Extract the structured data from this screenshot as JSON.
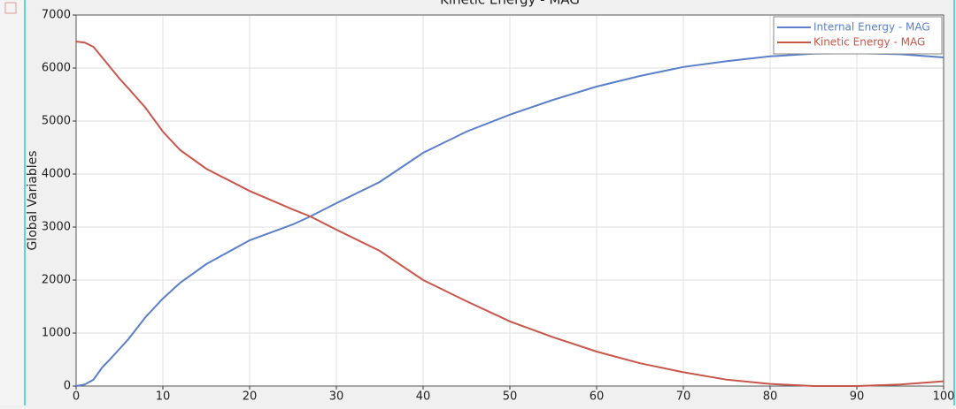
{
  "chart_data": {
    "type": "line",
    "title": "Kinetic Energy - MAG",
    "y_label": "Global Variables",
    "x": [
      0,
      1,
      2,
      3,
      4,
      5,
      6,
      8,
      10,
      12,
      15,
      20,
      25,
      27,
      30,
      35,
      40,
      45,
      50,
      55,
      60,
      65,
      70,
      75,
      80,
      85,
      90,
      95,
      100
    ],
    "series": [
      {
        "name": "Internal Energy - MAG",
        "color": "#5b7fc9",
        "values": [
          0,
          30,
          120,
          350,
          520,
          700,
          880,
          1300,
          1650,
          1950,
          2300,
          2750,
          3050,
          3200,
          3450,
          3850,
          4400,
          4800,
          5120,
          5400,
          5650,
          5850,
          6020,
          6130,
          6220,
          6270,
          6280,
          6260,
          6200
        ]
      },
      {
        "name": "Kinetic Energy - MAG",
        "color": "#c8564a",
        "values": [
          6500,
          6480,
          6400,
          6200,
          6000,
          5800,
          5620,
          5250,
          4800,
          4450,
          4100,
          3680,
          3330,
          3200,
          2950,
          2550,
          2000,
          1600,
          1220,
          920,
          650,
          430,
          260,
          120,
          40,
          0,
          0,
          30,
          90
        ]
      }
    ],
    "xlim": [
      0,
      100
    ],
    "xticks": [
      0,
      10,
      20,
      30,
      40,
      50,
      60,
      70,
      80,
      90,
      100
    ],
    "ylim": [
      0,
      7000
    ],
    "yticks": [
      0,
      1000,
      2000,
      3000,
      4000,
      5000,
      6000,
      7000
    ],
    "grid": true,
    "legend": "top-right"
  }
}
